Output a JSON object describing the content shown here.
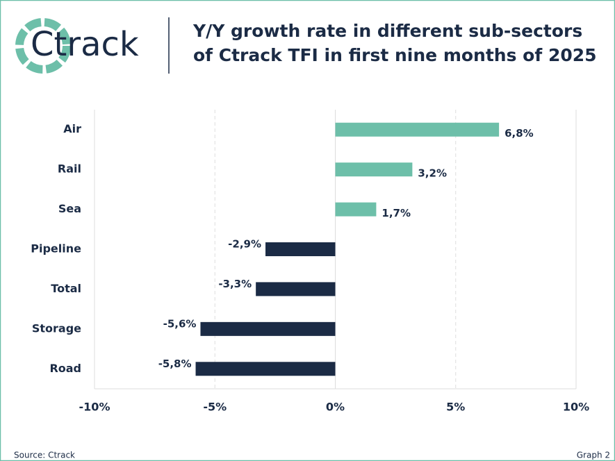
{
  "logo": "Ctrack",
  "chart_data": {
    "type": "hbar",
    "title_lines": [
      "Y/Y growth rate in different sub-sectors",
      "of Ctrack TFI in first nine months of 2025"
    ],
    "categories": [
      "Air",
      "Rail",
      "Sea",
      "Pipeline",
      "Total",
      "Storage",
      "Road"
    ],
    "values": [
      6.8,
      3.2,
      1.7,
      -2.9,
      -3.3,
      -5.6,
      -5.8
    ],
    "value_labels": [
      "6,8%",
      "3,2%",
      "1,7%",
      "-2,9%",
      "-3,3%",
      "-5,6%",
      "-5,8%"
    ],
    "colors": [
      "#6dbfa9",
      "#6dbfa9",
      "#6dbfa9",
      "#1b2b45",
      "#1b2b45",
      "#1b2b45",
      "#1b2b45"
    ],
    "xlim": [
      -10,
      10
    ],
    "xticks": [
      {
        "value": -10,
        "label": "-10%"
      },
      {
        "value": -5,
        "label": "-5%"
      },
      {
        "value": 0,
        "label": "0%"
      },
      {
        "value": 5,
        "label": "5%"
      },
      {
        "value": 10,
        "label": "10%"
      }
    ],
    "grid": true
  },
  "footer": {
    "source": "Source: Ctrack",
    "graph": "Graph 2"
  }
}
